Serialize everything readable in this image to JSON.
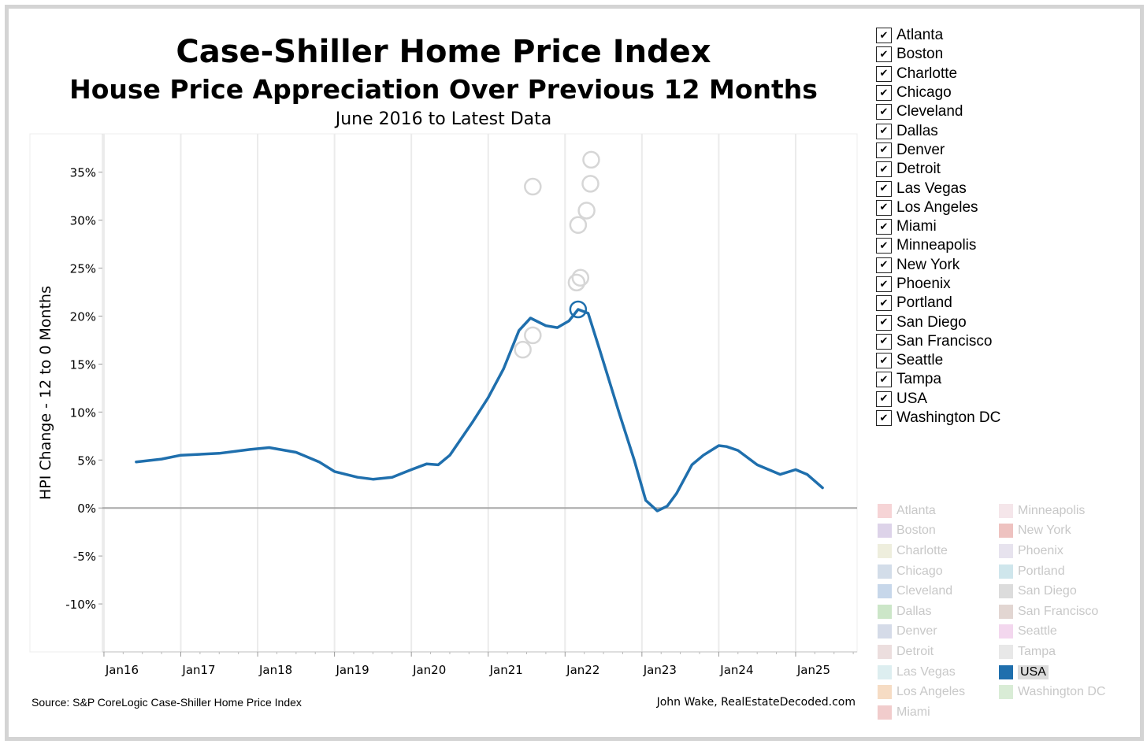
{
  "title": "Case-Shiller Home Price Index",
  "subtitle": "House Price Appreciation Over Previous 12 Months",
  "date_range": "June 2016 to Latest Data",
  "footer": {
    "source": "Source: S&P CoreLogic Case-Shiller Home Price Index",
    "credit": "John Wake, RealEstateDecoded.com"
  },
  "filter": {
    "check_glyph": "✔",
    "items": [
      "Atlanta",
      "Boston",
      "Charlotte",
      "Chicago",
      "Cleveland",
      "Dallas",
      "Denver",
      "Detroit",
      "Las Vegas",
      "Los Angeles",
      "Miami",
      "Minneapolis",
      "New York",
      "Phoenix",
      "Portland",
      "San Diego",
      "San Francisco",
      "Seattle",
      "Tampa",
      "USA",
      "Washington DC"
    ]
  },
  "legend": {
    "left": [
      "Atlanta",
      "Boston",
      "Charlotte",
      "Chicago",
      "Cleveland",
      "Dallas",
      "Denver",
      "Detroit",
      "Las Vegas",
      "Los Angeles",
      "Miami"
    ],
    "right": [
      "Minneapolis",
      "New York",
      "Phoenix",
      "Portland",
      "San Diego",
      "San Francisco",
      "Seattle",
      "Tampa",
      "USA",
      "Washington DC"
    ],
    "active": "USA"
  },
  "colors": {
    "Atlanta": "#f6d4d6",
    "Boston": "#ddd3e9",
    "Charlotte": "#eeeedd",
    "Chicago": "#d3dde9",
    "Cleveland": "#c7d7ea",
    "Dallas": "#cce6c8",
    "Denver": "#d5dbe8",
    "Detroit": "#ecdede",
    "Las Vegas": "#ddeef0",
    "Los Angeles": "#f6dcc4",
    "Miami": "#f1cccc",
    "Minneapolis": "#f5e6ea",
    "New York": "#eec2c0",
    "Phoenix": "#e7e3ee",
    "Portland": "#cfe6ec",
    "San Diego": "#dcdcdc",
    "San Francisco": "#e2d6d2",
    "Seattle": "#f3d7ee",
    "Tampa": "#e8e8e8",
    "USA": "#1f6fad",
    "Washington DC": "#d9ecd6"
  },
  "chart_data": {
    "type": "line",
    "ylabel": "HPI Change - 12 to 0 Months",
    "ylim": [
      -15,
      39
    ],
    "yticks": [
      "35%",
      "30%",
      "25%",
      "20%",
      "15%",
      "10%",
      "5%",
      "0%",
      "-5%",
      "-10%"
    ],
    "ytick_values": [
      35,
      30,
      25,
      20,
      15,
      10,
      5,
      0,
      -5,
      -10
    ],
    "xticks": [
      "Jan16",
      "Jan17",
      "Jan18",
      "Jan19",
      "Jan20",
      "Jan21",
      "Jan22",
      "Jan23",
      "Jan24",
      "Jan25"
    ],
    "xtick_values": [
      2016,
      2017,
      2018,
      2019,
      2020,
      2021,
      2022,
      2023,
      2024,
      2025
    ],
    "xlim": [
      2015.98,
      2025.8
    ],
    "grid": "vertical",
    "series": [
      {
        "name": "USA",
        "x": [
          2016.42,
          2016.75,
          2017.0,
          2017.5,
          2017.9,
          2018.15,
          2018.5,
          2018.8,
          2019.0,
          2019.3,
          2019.5,
          2019.75,
          2020.0,
          2020.2,
          2020.35,
          2020.5,
          2020.8,
          2021.0,
          2021.2,
          2021.4,
          2021.55,
          2021.75,
          2021.9,
          2022.05,
          2022.17,
          2022.3,
          2022.45,
          2022.7,
          2022.9,
          2023.05,
          2023.2,
          2023.33,
          2023.45,
          2023.65,
          2023.8,
          2024.0,
          2024.1,
          2024.25,
          2024.5,
          2024.8,
          2025.0,
          2025.15,
          2025.35
        ],
        "y": [
          4.8,
          5.1,
          5.5,
          5.7,
          6.1,
          6.3,
          5.8,
          4.8,
          3.8,
          3.2,
          3.0,
          3.2,
          4.0,
          4.6,
          4.5,
          5.5,
          9.0,
          11.5,
          14.5,
          18.5,
          19.8,
          19.0,
          18.8,
          19.5,
          20.7,
          20.3,
          16.5,
          10.0,
          5.0,
          0.8,
          -0.3,
          0.2,
          1.5,
          4.5,
          5.5,
          6.5,
          6.4,
          6.0,
          4.5,
          3.5,
          4.0,
          3.5,
          2.1
        ]
      }
    ],
    "peak_markers": [
      {
        "x": 2022.17,
        "y": 20.7,
        "series": "USA"
      },
      {
        "x": 2021.58,
        "y": 33.5
      },
      {
        "x": 2022.34,
        "y": 36.3
      },
      {
        "x": 2022.33,
        "y": 33.8
      },
      {
        "x": 2022.28,
        "y": 31.0
      },
      {
        "x": 2022.17,
        "y": 29.5
      },
      {
        "x": 2022.2,
        "y": 24.0
      },
      {
        "x": 2022.15,
        "y": 23.5
      },
      {
        "x": 2021.58,
        "y": 18.0
      },
      {
        "x": 2021.45,
        "y": 16.5
      }
    ]
  }
}
